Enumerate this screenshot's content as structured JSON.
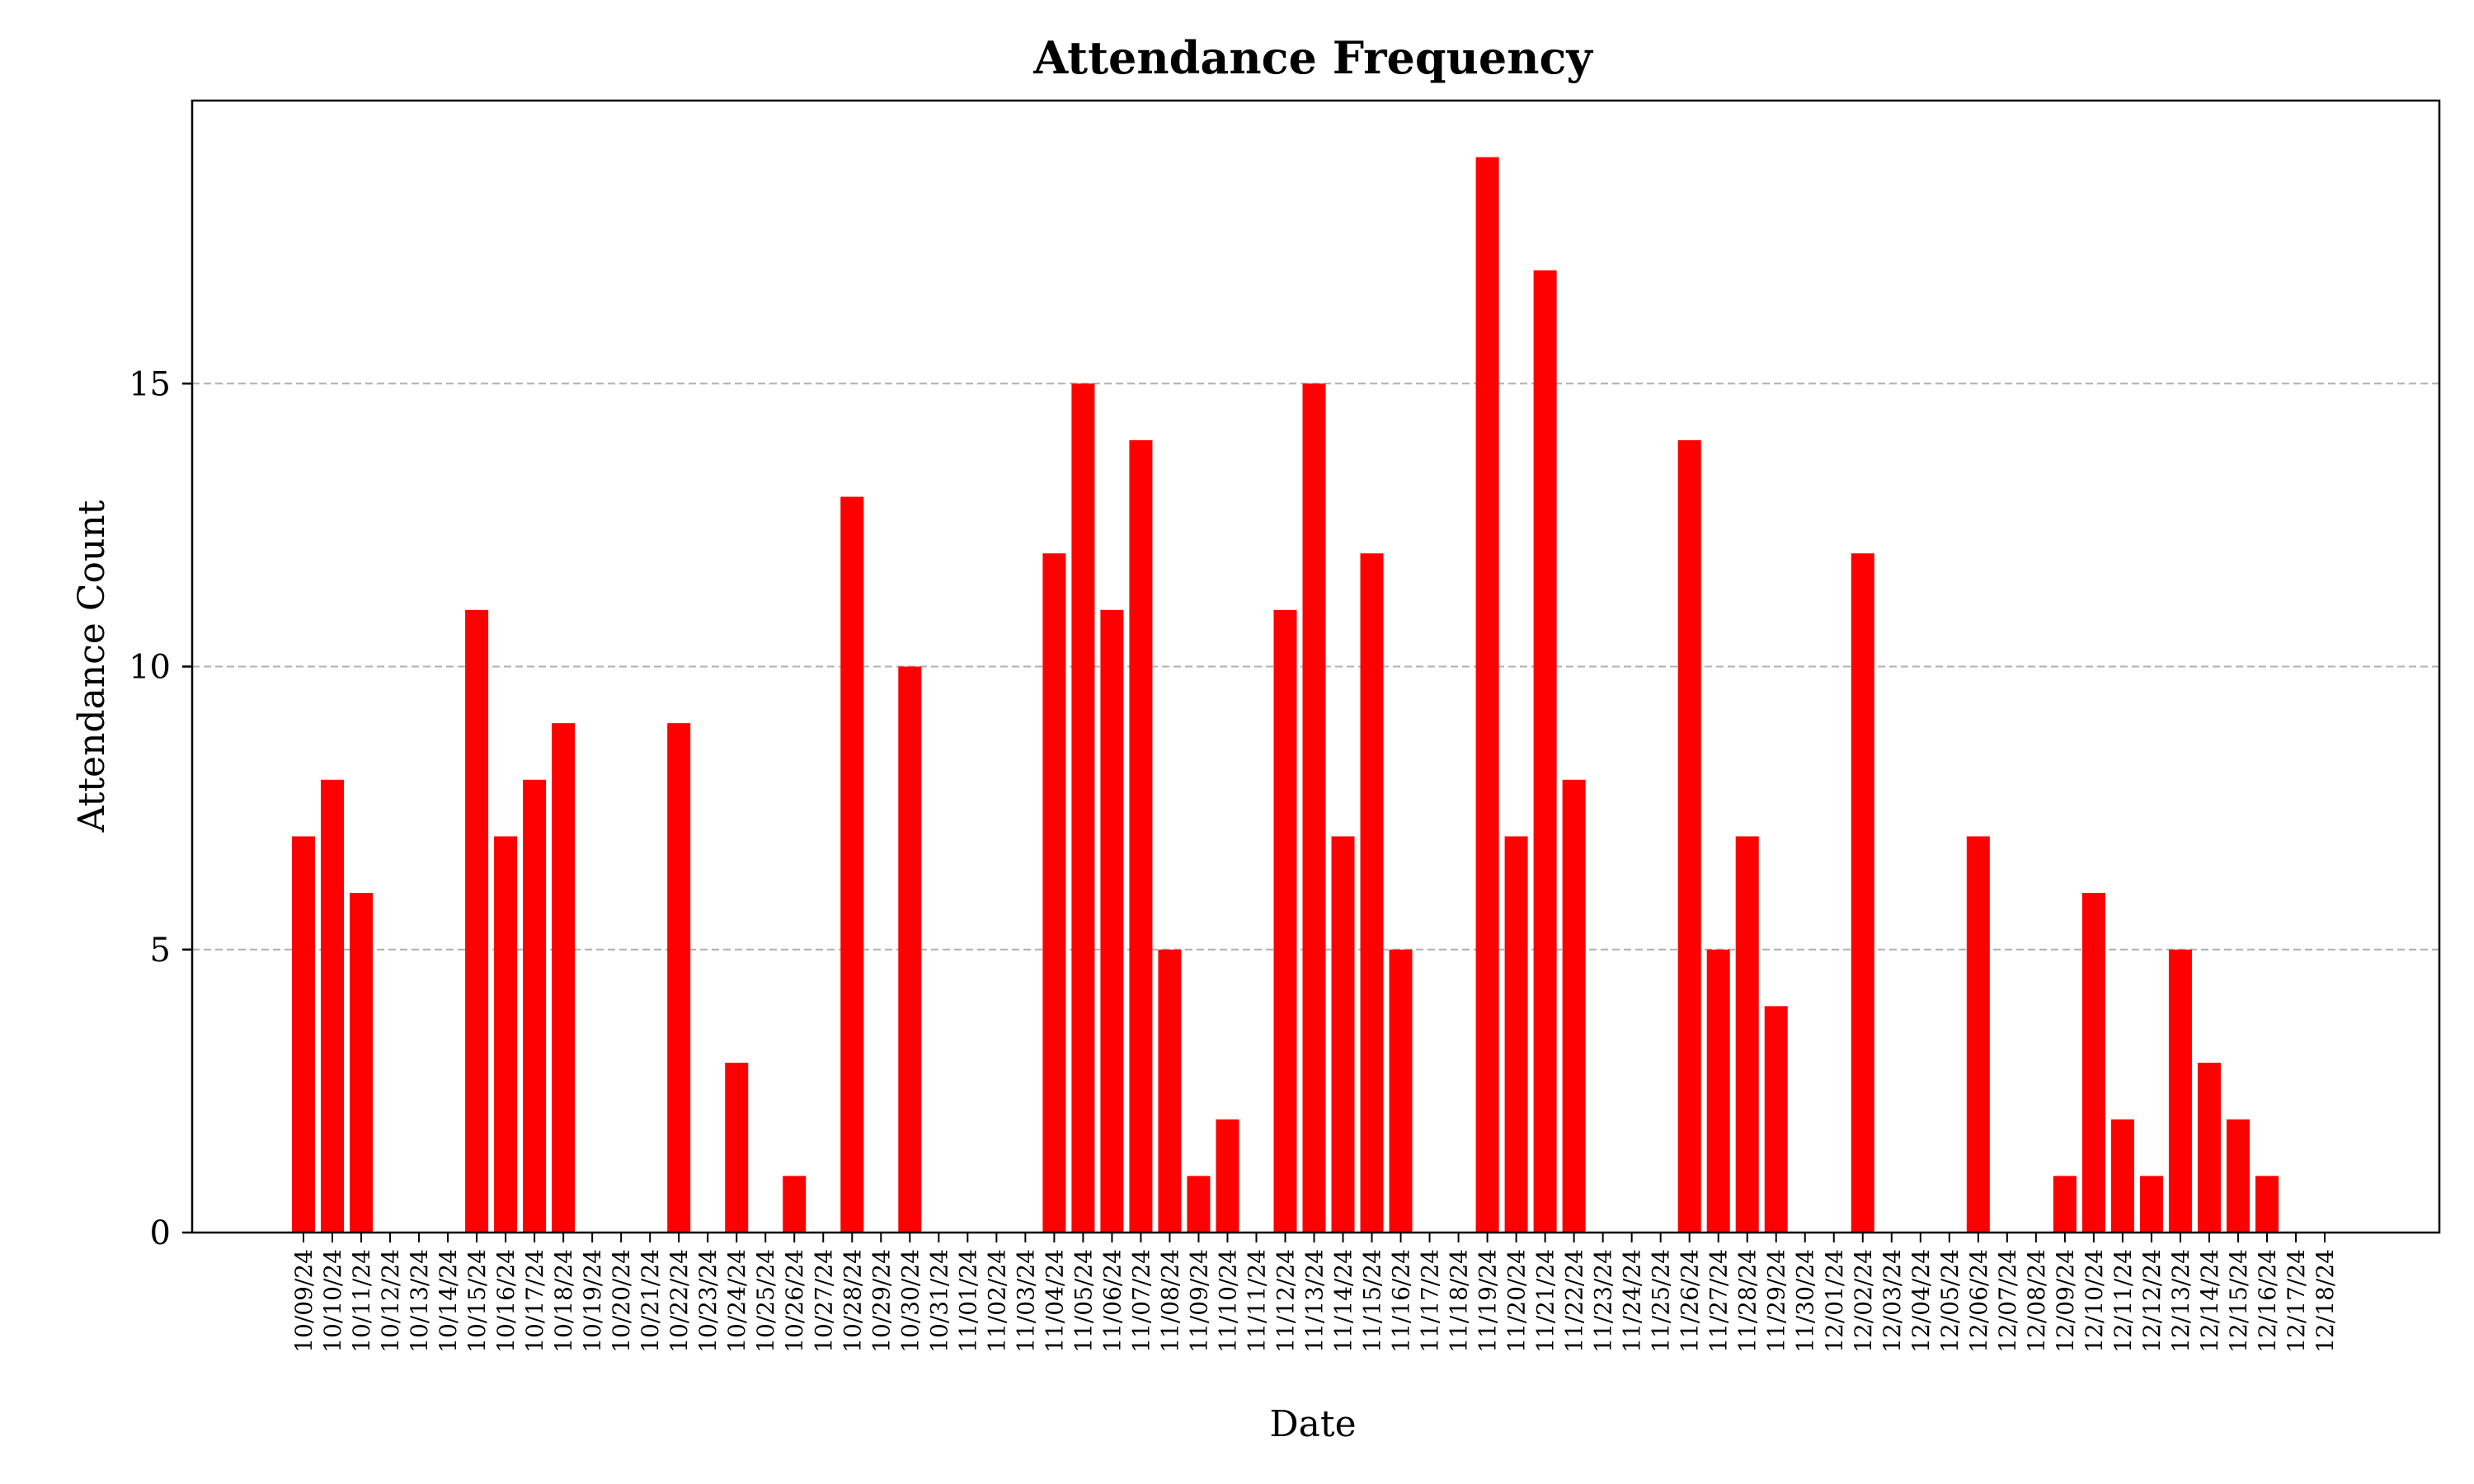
{
  "chart_data": {
    "type": "bar",
    "title": "Attendance Frequency",
    "xlabel": "Date",
    "ylabel": "Attendance Count",
    "ylim": [
      0,
      20
    ],
    "yticks": [
      0,
      5,
      10,
      15
    ],
    "grid": "horizontal-dashed",
    "bar_color": "#ff0000",
    "categories": [
      "10/09/24",
      "10/10/24",
      "10/11/24",
      "10/12/24",
      "10/13/24",
      "10/14/24",
      "10/15/24",
      "10/16/24",
      "10/17/24",
      "10/18/24",
      "10/19/24",
      "10/20/24",
      "10/21/24",
      "10/22/24",
      "10/23/24",
      "10/24/24",
      "10/25/24",
      "10/26/24",
      "10/27/24",
      "10/28/24",
      "10/29/24",
      "10/30/24",
      "10/31/24",
      "11/01/24",
      "11/02/24",
      "11/03/24",
      "11/04/24",
      "11/05/24",
      "11/06/24",
      "11/07/24",
      "11/08/24",
      "11/09/24",
      "11/10/24",
      "11/11/24",
      "11/12/24",
      "11/13/24",
      "11/14/24",
      "11/15/24",
      "11/16/24",
      "11/17/24",
      "11/18/24",
      "11/19/24",
      "11/20/24",
      "11/21/24",
      "11/22/24",
      "11/23/24",
      "11/24/24",
      "11/25/24",
      "11/26/24",
      "11/27/24",
      "11/28/24",
      "11/29/24",
      "11/30/24",
      "12/01/24",
      "12/02/24",
      "12/03/24",
      "12/04/24",
      "12/05/24",
      "12/06/24",
      "12/07/24",
      "12/08/24",
      "12/09/24",
      "12/10/24",
      "12/11/24",
      "12/12/24",
      "12/13/24",
      "12/14/24",
      "12/15/24",
      "12/16/24",
      "12/17/24",
      "12/18/24"
    ],
    "values": [
      7,
      8,
      6,
      0,
      0,
      0,
      11,
      7,
      8,
      9,
      0,
      0,
      0,
      9,
      0,
      3,
      0,
      1,
      0,
      13,
      0,
      10,
      0,
      0,
      0,
      0,
      12,
      15,
      11,
      14,
      5,
      1,
      2,
      0,
      11,
      15,
      7,
      12,
      5,
      0,
      0,
      19,
      7,
      17,
      8,
      0,
      0,
      0,
      14,
      5,
      7,
      4,
      0,
      0,
      12,
      0,
      0,
      0,
      7,
      0,
      0,
      1,
      6,
      2,
      1,
      5,
      3,
      2,
      1,
      0,
      0
    ]
  }
}
